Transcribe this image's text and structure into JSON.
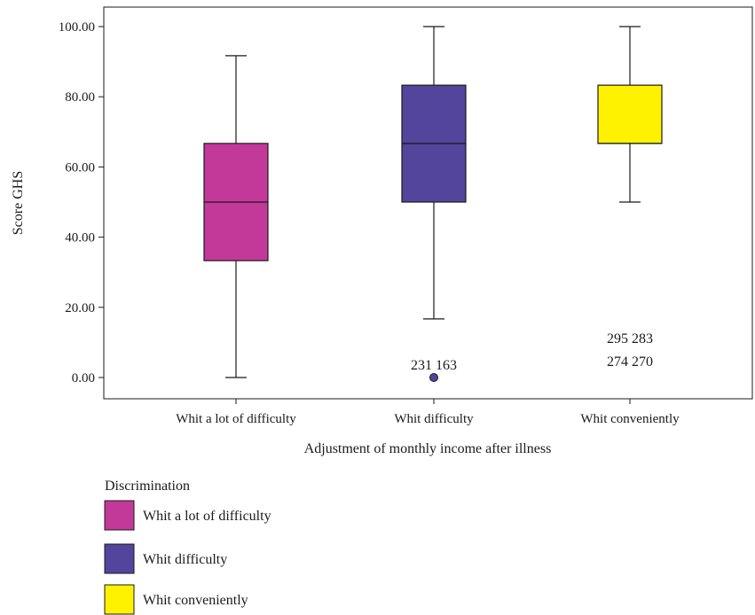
{
  "chart_data": {
    "type": "boxplot",
    "xlabel": "Adjustment of monthly income after illness",
    "ylabel": "Score GHS",
    "ylim": [
      0,
      100
    ],
    "yticks": [
      {
        "value": 0,
        "label": "0.00"
      },
      {
        "value": 20,
        "label": "20.00"
      },
      {
        "value": 40,
        "label": "40.00"
      },
      {
        "value": 60,
        "label": "60.00"
      },
      {
        "value": 80,
        "label": "80.00"
      },
      {
        "value": 100,
        "label": "100.00"
      }
    ],
    "categories": [
      "Whit a lot of difficulty",
      "Whit difficulty",
      "Whit conveniently"
    ],
    "boxes": [
      {
        "category": "Whit a lot of difficulty",
        "whisker_low": 0,
        "q1": 33.3,
        "median": 50,
        "q3": 66.7,
        "whisker_high": 91.7,
        "color": "#C2399A"
      },
      {
        "category": "Whit difficulty",
        "whisker_low": 16.7,
        "q1": 50,
        "median": 66.7,
        "q3": 83.3,
        "whisker_high": 100,
        "color": "#53449C"
      },
      {
        "category": "Whit conveniently",
        "whisker_low": 50,
        "q1": 66.7,
        "median": 66.7,
        "q3": 83.3,
        "whisker_high": 100,
        "color": "#FFF200"
      }
    ],
    "outliers": [
      {
        "category": "Whit difficulty",
        "value": 0,
        "labels": [
          "231 163"
        ]
      },
      {
        "category": "Whit conveniently",
        "value": 0,
        "labels": [
          "295 283",
          "274 270"
        ]
      }
    ],
    "legend": {
      "title": "Discrimination",
      "placement": "bottom-left",
      "items": [
        {
          "label": "Whit a lot of difficulty",
          "color": "#C2399A"
        },
        {
          "label": "Whit difficulty",
          "color": "#53449C"
        },
        {
          "label": "Whit conveniently",
          "color": "#FFF200"
        }
      ]
    }
  }
}
